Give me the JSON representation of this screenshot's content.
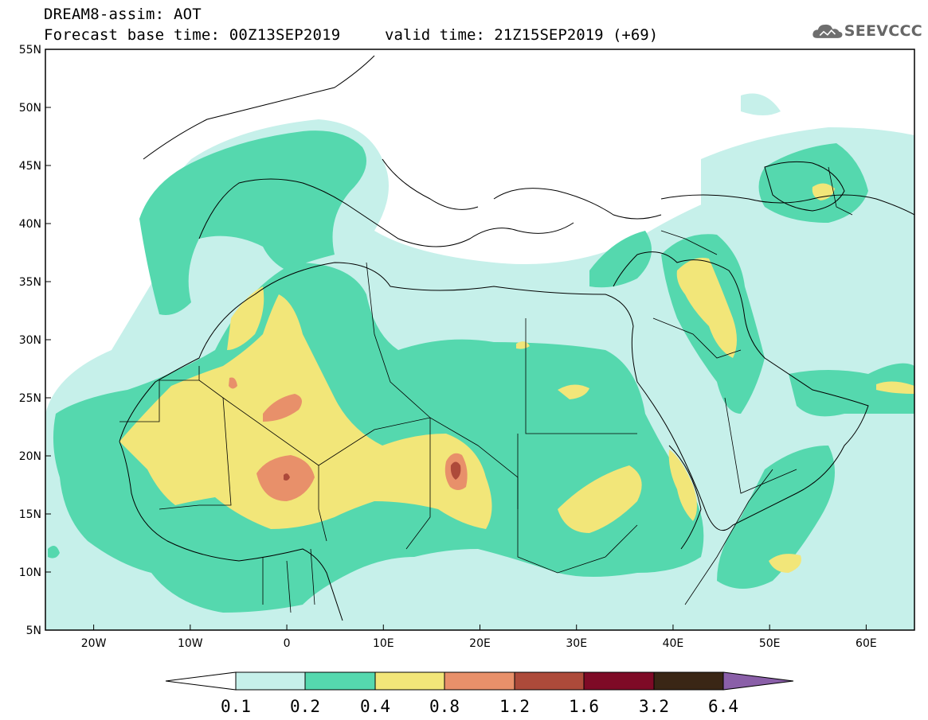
{
  "title": {
    "line1": "DREAM8-assim: AOT",
    "line2_left": "Forecast base time: 00Z13SEP2019",
    "line2_right": "valid time: 21Z15SEP2019 (+69)"
  },
  "logo": {
    "text": "SEEVCCC",
    "icon": "cloud-icon"
  },
  "axes": {
    "lon_ticks": [
      "20W",
      "10W",
      "0",
      "10E",
      "20E",
      "30E",
      "40E",
      "50E",
      "60E"
    ],
    "lat_ticks": [
      "55N",
      "50N",
      "45N",
      "40N",
      "35N",
      "30N",
      "25N",
      "20N",
      "15N",
      "10N",
      "5N"
    ],
    "lon_range": [
      -25,
      65
    ],
    "lat_range": [
      5,
      55
    ]
  },
  "colorbar": {
    "labels": [
      "0.1",
      "0.2",
      "0.4",
      "0.8",
      "1.2",
      "1.6",
      "3.2",
      "6.4"
    ],
    "colors": {
      "under": "#ffffff",
      "c1": "#c6f0ea",
      "c2": "#55d8ae",
      "c3": "#f2e679",
      "c4": "#e8906a",
      "c5": "#ad4a3a",
      "c6": "#7e0a26",
      "c7": "#3a2615",
      "over": "#8a5fa8"
    }
  }
}
